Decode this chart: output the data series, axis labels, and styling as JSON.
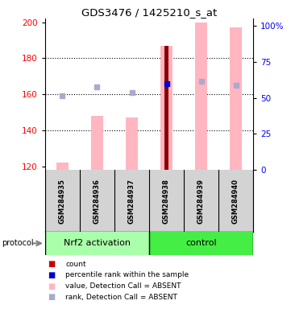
{
  "title": "GDS3476 / 1425210_s_at",
  "samples": [
    "GSM284935",
    "GSM284936",
    "GSM284937",
    "GSM284938",
    "GSM284939",
    "GSM284940"
  ],
  "ylim_left": [
    118,
    202
  ],
  "ylim_right": [
    0,
    105
  ],
  "yticks_left": [
    120,
    140,
    160,
    180,
    200
  ],
  "yticks_right": [
    0,
    25,
    50,
    75,
    100
  ],
  "ytick_labels_right": [
    "0",
    "25",
    "50",
    "75",
    "100%"
  ],
  "pink_bar_values": [
    122,
    148,
    147,
    187,
    200,
    197
  ],
  "pink_bar_color": "#FFB6C1",
  "red_bar_index": 3,
  "red_bar_value": 187,
  "red_bar_color": "#8B0000",
  "blue_sq_values": [
    159,
    164,
    161,
    166,
    167,
    165
  ],
  "blue_sq_dark_index": 3,
  "blue_sq_dark_color": "#0000CD",
  "blue_sq_light_color": "#AAAACC",
  "dotted_lines": [
    180,
    160,
    140
  ],
  "sample_bg": "#D3D3D3",
  "group_nrf2_color": "#AAFFAA",
  "group_ctrl_color": "#44EE44",
  "legend_items": [
    {
      "label": "count",
      "color": "#CC0000"
    },
    {
      "label": "percentile rank within the sample",
      "color": "#0000CC"
    },
    {
      "label": "value, Detection Call = ABSENT",
      "color": "#FFB6C1"
    },
    {
      "label": "rank, Detection Call = ABSENT",
      "color": "#AAAACC"
    }
  ]
}
